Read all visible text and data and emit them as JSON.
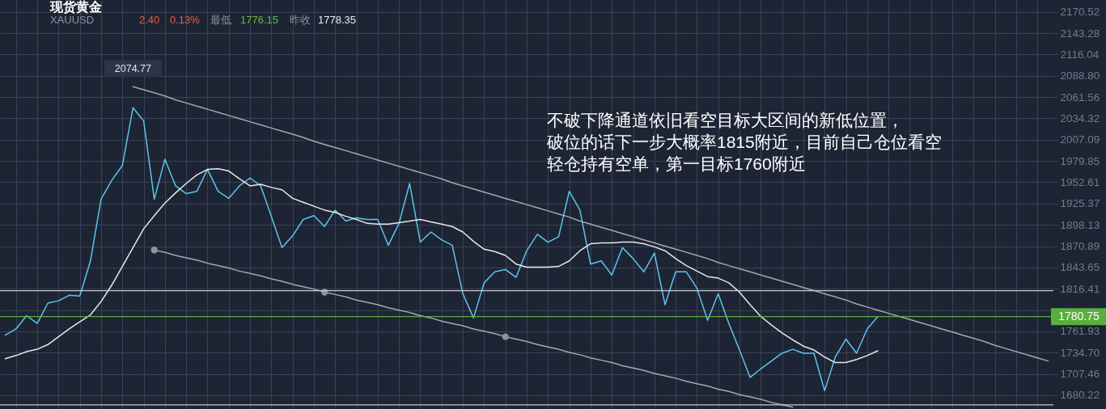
{
  "chart_data": {
    "type": "line",
    "title": "现货黄金",
    "subtitle": "XAUUSD",
    "categories": [
      null,
      null,
      null,
      null,
      null,
      null,
      null,
      null,
      null,
      null,
      null,
      null,
      null,
      null,
      null,
      null,
      null,
      null,
      null,
      null,
      null,
      null,
      null,
      null,
      null,
      null,
      null,
      null,
      null,
      null,
      null,
      null,
      null,
      null,
      null,
      null,
      null,
      null,
      null,
      null,
      null,
      null,
      null,
      null,
      null,
      null,
      null,
      null,
      null,
      null,
      null,
      null,
      null,
      null,
      null,
      null,
      null,
      null,
      null,
      null,
      null,
      null,
      null,
      null,
      null,
      null,
      null,
      null,
      null,
      null,
      null,
      null,
      null,
      null,
      null,
      null,
      null,
      null,
      null,
      null,
      null,
      null,
      null,
      null,
      null,
      null,
      null,
      null,
      null,
      null,
      null,
      null,
      null,
      null,
      null,
      null,
      null,
      null,
      null
    ],
    "series": [
      {
        "color": "#5ec4ee",
        "values": [
          1757,
          1765,
          1782,
          1772,
          1798,
          1801,
          1808,
          1807,
          1852,
          1931,
          1955,
          1974,
          2048,
          2031,
          1931,
          1982,
          1948,
          1938,
          1941,
          1969,
          1941,
          1932,
          1948,
          1958,
          1948,
          1909,
          1869,
          1884,
          1905,
          1910,
          1896,
          1917,
          1903,
          1907,
          1905,
          1905,
          1872,
          1900,
          1951,
          1876,
          1889,
          1879,
          1872,
          1810,
          1779,
          1824,
          1838,
          1841,
          1831,
          1865,
          1886,
          1876,
          1883,
          1941,
          1917,
          1848,
          1852,
          1834,
          1869,
          1855,
          1838,
          1862,
          1796,
          1838,
          1838,
          1817,
          1776,
          1810,
          1772,
          1738,
          1703,
          1714,
          1724,
          1734,
          1739,
          1734,
          1734,
          1686,
          1729,
          1752,
          1734,
          1765,
          1781,
          null,
          null,
          null,
          null,
          null,
          null,
          null,
          null,
          null,
          null,
          null,
          null,
          null,
          null,
          null,
          null
        ]
      },
      {
        "color": "#e8e8ea",
        "values": [
          1727,
          1731,
          1736,
          1739,
          1745,
          1755,
          1765,
          1774,
          1783,
          1800,
          1821,
          1845,
          1869,
          1893,
          1910,
          1926,
          1939,
          1951,
          1962,
          1969,
          1970,
          1967,
          1957,
          1948,
          1950,
          1946,
          1943,
          1932,
          1927,
          1922,
          1917,
          1914,
          1909,
          1905,
          1900,
          1899,
          1899,
          1901,
          1903,
          1905,
          1902,
          1899,
          1896,
          1889,
          1877,
          1867,
          1864,
          1859,
          1848,
          1844,
          1844,
          1844,
          1845,
          1852,
          1865,
          1874,
          1875,
          1875,
          1876,
          1876,
          1874,
          1870,
          1865,
          1855,
          1846,
          1839,
          1832,
          1830,
          1824,
          1812,
          1796,
          1781,
          1770,
          1760,
          1751,
          1743,
          1738,
          1729,
          1722,
          1722,
          1726,
          1731,
          1737,
          null,
          null,
          null,
          null,
          null,
          null,
          null,
          null,
          null,
          null,
          null,
          null,
          null,
          null,
          null,
          null
        ]
      },
      {
        "color": "#a3a8b2",
        "values": [
          null,
          null,
          null,
          null,
          null,
          null,
          null,
          null,
          null,
          null,
          null,
          null,
          2074.77,
          2071,
          2067,
          2063,
          2058,
          2054,
          2050,
          2046,
          2042,
          2038,
          2034,
          2030,
          2026,
          2022,
          2018,
          2014,
          2010,
          2005,
          2001,
          1997,
          1993,
          1989,
          1985,
          1981,
          1977,
          1973,
          1969,
          1965,
          1961,
          1957,
          1952,
          1948,
          1944,
          1940,
          1936,
          1932,
          1928,
          1924,
          1920,
          1916,
          1912,
          1908,
          1903,
          1899,
          1895,
          1891,
          1887,
          1883,
          1879,
          1875,
          1871,
          1867,
          1863,
          1859,
          1855,
          1850,
          1846,
          1842,
          1838,
          1834,
          1830,
          1826,
          1822,
          1818,
          1814,
          1810,
          1806,
          1802,
          1797,
          1793,
          1789,
          1785,
          1781,
          1777,
          1773,
          1769,
          1765,
          1761,
          1757,
          1753,
          1749,
          1744,
          1740,
          1736,
          1732,
          1728,
          1724
        ]
      },
      {
        "color": "#a3a8b2",
        "values": [
          null,
          null,
          null,
          null,
          null,
          null,
          null,
          null,
          null,
          null,
          null,
          null,
          null,
          null,
          1866,
          1863,
          1859,
          1856,
          1853,
          1849,
          1846,
          1843,
          1839,
          1836,
          1833,
          1829,
          1826,
          1822,
          1819,
          1816,
          1812,
          1809,
          1806,
          1802,
          1799,
          1796,
          1792,
          1789,
          1786,
          1782,
          1779,
          1775,
          1772,
          1769,
          1765,
          1762,
          1759,
          1755,
          1752,
          1749,
          1745,
          1742,
          1739,
          1735,
          1732,
          1728,
          1725,
          1722,
          1718,
          1715,
          1712,
          1708,
          1705,
          1702,
          1698,
          1695,
          1692,
          1688,
          1685,
          1681,
          1678,
          1675,
          1671,
          1668,
          1665,
          null,
          null,
          null,
          null,
          null,
          null,
          null,
          null,
          null,
          null,
          null,
          null,
          null,
          null,
          null,
          null,
          null,
          null,
          null,
          null,
          null,
          null,
          null,
          null
        ]
      },
      {
        "type": "scatter",
        "color": "#8e929d",
        "marker": "circle",
        "values": [
          null,
          null,
          null,
          null,
          null,
          null,
          null,
          null,
          null,
          null,
          null,
          null,
          null,
          null,
          1866,
          null,
          null,
          null,
          null,
          null,
          null,
          null,
          null,
          null,
          null,
          null,
          null,
          null,
          null,
          null,
          1812,
          null,
          null,
          null,
          null,
          null,
          null,
          null,
          null,
          null,
          null,
          null,
          null,
          null,
          null,
          null,
          null,
          1755,
          null,
          null,
          null,
          null,
          null,
          null,
          null,
          null,
          null,
          null,
          null,
          null,
          null,
          null,
          null,
          null,
          null,
          null,
          null,
          null,
          null,
          null,
          null,
          null,
          null,
          null,
          null,
          null,
          null,
          null,
          null,
          null,
          null,
          null,
          null,
          null,
          null,
          null,
          null,
          null,
          null,
          null,
          null,
          null,
          null,
          null,
          null,
          null,
          null,
          null,
          null
        ]
      }
    ],
    "ylim": [
      1662.6,
      2185.7
    ],
    "yticks": [
      2170.52,
      2143.28,
      2116.04,
      {
        "value": 2088.8,
        "label": "2088.80"
      },
      2061.56,
      2034.32,
      2007.09,
      1979.85,
      1952.61,
      1925.37,
      1898.13,
      1870.89,
      1843.65,
      1816.41,
      {
        "value": 1789.17,
        "label": null
      },
      1761.93,
      {
        "value": 1734.7,
        "label": "1734.70"
      },
      1707.46,
      1680.22
    ],
    "tick_labels": "y",
    "grid": true,
    "ref_lines": [
      {
        "axis": "y",
        "value": 1814,
        "color": "#c6c9d0"
      },
      {
        "axis": "y",
        "value": 1780.75,
        "label": "1780.75",
        "color": "#5aae3d"
      },
      {
        "axis": "y",
        "value": 1668,
        "color": "#c6c9d0"
      }
    ],
    "annotations": [
      {
        "text": "2074.77",
        "y": 2074.77
      },
      "不破下降通道依旧看空目标大区间的新低位置，",
      "破位的话下一步大概率1815附近，目前自己仓位看空",
      "轻仓持有空单，第一目标1760附近",
      "2.40",
      "0.13%",
      "最低",
      "1776.15",
      "昨收",
      "1778.35"
    ]
  }
}
